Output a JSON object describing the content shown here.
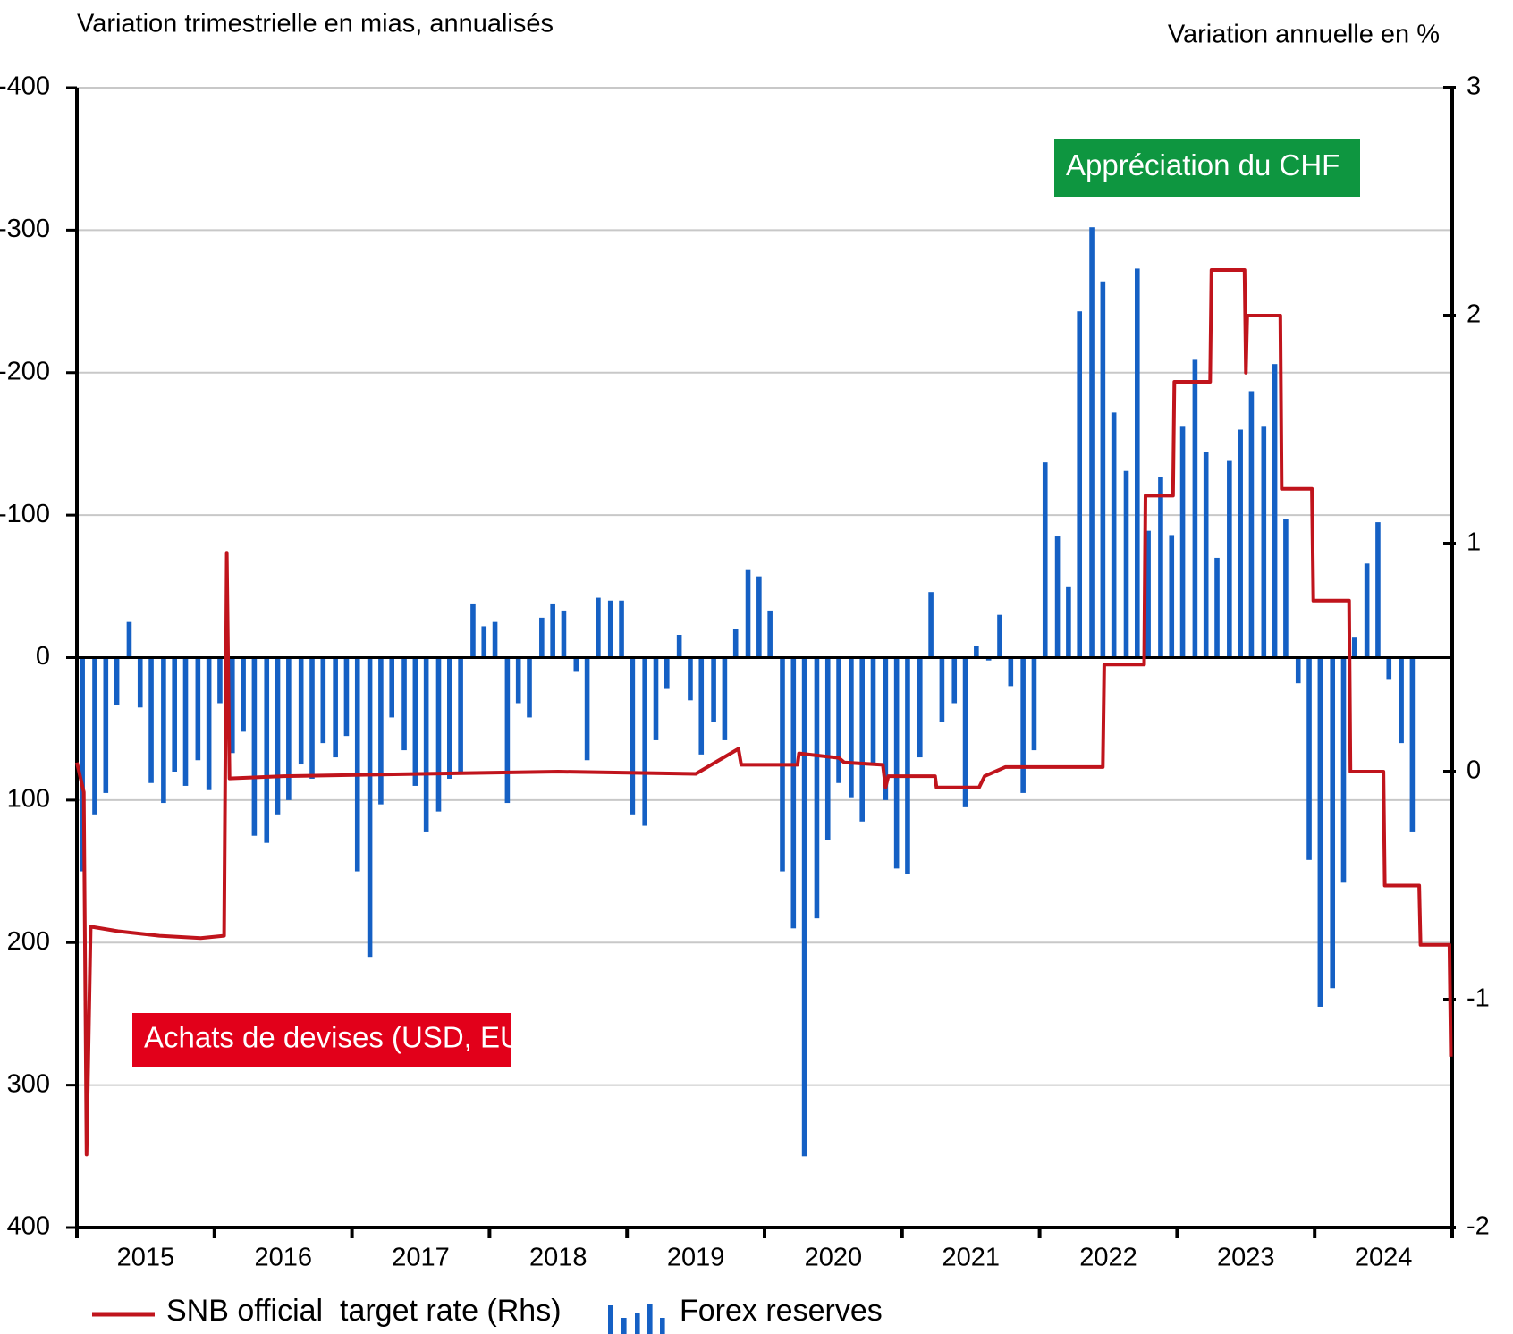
{
  "chart_data": {
    "type": "bar",
    "y_label": "Variation trimestrielle en mias, annualisés",
    "y2_label": "Variation annuelle en %",
    "ylim": [
      -400,
      400
    ],
    "inverted": true,
    "yticks": [
      -400,
      -300,
      -200,
      -100,
      0,
      100,
      200,
      300,
      400
    ],
    "y2lim": [
      -2,
      3
    ],
    "y2ticks": [
      -2,
      -1,
      0,
      1,
      2,
      3
    ],
    "xlim": [
      2015,
      2025
    ],
    "xticks": [
      2015,
      2016,
      2017,
      2018,
      2019,
      2020,
      2021,
      2022,
      2023,
      2024,
      2025
    ],
    "xlabels": [
      {
        "value": 2015.5,
        "label": "2015"
      },
      {
        "value": 2016.5,
        "label": "2016"
      },
      {
        "value": 2017.5,
        "label": "2017"
      },
      {
        "value": 2018.5,
        "label": "2018"
      },
      {
        "value": 2019.5,
        "label": "2019"
      },
      {
        "value": 2020.5,
        "label": "2020"
      },
      {
        "value": 2021.5,
        "label": "2021"
      },
      {
        "value": 2022.5,
        "label": "2022"
      },
      {
        "value": 2023.5,
        "label": "2023"
      },
      {
        "value": 2024.5,
        "label": "2024"
      }
    ],
    "grid": true,
    "annotations": [
      {
        "text": "Appréciation du CHF",
        "color": "#0e9640"
      },
      {
        "text": "Achats de devises (USD, EUR)",
        "color": "#e2001a"
      }
    ],
    "series": [
      {
        "name": "Forex reserves",
        "type": "bar",
        "color": "#1560c4",
        "x": [
          2015.04,
          2015.13,
          2015.21,
          2015.29,
          2015.38,
          2015.46,
          2015.54,
          2015.63,
          2015.71,
          2015.79,
          2015.88,
          2015.96,
          2016.04,
          2016.13,
          2016.21,
          2016.29,
          2016.38,
          2016.46,
          2016.54,
          2016.63,
          2016.71,
          2016.79,
          2016.88,
          2016.96,
          2017.04,
          2017.13,
          2017.21,
          2017.29,
          2017.38,
          2017.46,
          2017.54,
          2017.63,
          2017.71,
          2017.79,
          2017.88,
          2017.96,
          2018.04,
          2018.13,
          2018.21,
          2018.29,
          2018.38,
          2018.46,
          2018.54,
          2018.63,
          2018.71,
          2018.79,
          2018.88,
          2018.96,
          2019.04,
          2019.13,
          2019.21,
          2019.29,
          2019.38,
          2019.46,
          2019.54,
          2019.63,
          2019.71,
          2019.79,
          2019.88,
          2019.96,
          2020.04,
          2020.13,
          2020.21,
          2020.29,
          2020.38,
          2020.46,
          2020.54,
          2020.63,
          2020.71,
          2020.79,
          2020.88,
          2020.96,
          2021.04,
          2021.13,
          2021.21,
          2021.29,
          2021.38,
          2021.46,
          2021.54,
          2021.63,
          2021.71,
          2021.79,
          2021.88,
          2021.96,
          2022.04,
          2022.13,
          2022.21,
          2022.29,
          2022.38,
          2022.46,
          2022.54,
          2022.63,
          2022.71,
          2022.79,
          2022.88,
          2022.96,
          2023.04,
          2023.13,
          2023.21,
          2023.29,
          2023.38,
          2023.46,
          2023.54,
          2023.63,
          2023.71,
          2023.79,
          2023.88,
          2023.96,
          2024.04,
          2024.13,
          2024.21,
          2024.29,
          2024.38,
          2024.46,
          2024.54,
          2024.63,
          2024.71,
          2024.79
        ],
        "values": [
          150,
          110,
          95,
          33,
          -25,
          35,
          88,
          102,
          80,
          90,
          72,
          93,
          32,
          67,
          52,
          125,
          130,
          110,
          100,
          75,
          85,
          60,
          70,
          55,
          150,
          210,
          103,
          42,
          65,
          90,
          122,
          108,
          85,
          80,
          -38,
          -22,
          -25,
          102,
          32,
          42,
          -28,
          -38,
          -33,
          10,
          72,
          -42,
          -40,
          -40,
          110,
          118,
          58,
          22,
          -16,
          30,
          68,
          45,
          58,
          -20,
          -62,
          -57,
          -33,
          150,
          190,
          350,
          183,
          128,
          88,
          98,
          115,
          75,
          100,
          148,
          152,
          70,
          -46,
          45,
          32,
          105,
          -8,
          2,
          -30,
          20,
          95,
          65,
          -137,
          -85,
          -50,
          -243,
          -302,
          -264,
          -172,
          -131,
          -273,
          -89,
          -127,
          -86,
          -162,
          -209,
          -144,
          -70,
          -138,
          -160,
          -187,
          -162,
          -206,
          -97,
          18,
          142,
          245,
          232,
          158,
          -14,
          -66,
          -95,
          15,
          60,
          122,
          0
        ]
      },
      {
        "name": "SNB official  target rate (Rhs)",
        "type": "line",
        "axis": "y2",
        "color": "#c0141c",
        "x": [
          2015.0,
          2015.05,
          2015.07,
          2015.1,
          2015.3,
          2015.6,
          2015.9,
          2016.07,
          2016.09,
          2016.11,
          2016.5,
          2017.5,
          2018.5,
          2019.5,
          2019.81,
          2019.83,
          2020.24,
          2020.25,
          2020.54,
          2020.58,
          2020.86,
          2020.88,
          2020.9,
          2021.24,
          2021.25,
          2021.56,
          2021.6,
          2021.75,
          2022.46,
          2022.47,
          2022.76,
          2022.77,
          2022.97,
          2022.98,
          2023.24,
          2023.25,
          2023.49,
          2023.5,
          2023.51,
          2023.75,
          2023.76,
          2023.98,
          2023.99,
          2024.25,
          2024.26,
          2024.5,
          2024.51,
          2024.76,
          2024.77,
          2024.98,
          2024.99
        ],
        "values": [
          0.04,
          -0.09,
          -1.68,
          -0.68,
          -0.7,
          -0.72,
          -0.73,
          -0.72,
          0.96,
          -0.03,
          -0.02,
          -0.01,
          0.0,
          -0.01,
          0.1,
          0.03,
          0.03,
          0.08,
          0.06,
          0.04,
          0.03,
          -0.07,
          -0.02,
          -0.02,
          -0.07,
          -0.07,
          -0.02,
          0.02,
          0.02,
          0.47,
          0.47,
          1.21,
          1.21,
          1.71,
          1.71,
          2.2,
          2.2,
          1.75,
          2.0,
          2.0,
          1.24,
          1.24,
          0.75,
          0.75,
          0.0,
          0.0,
          -0.5,
          -0.5,
          -0.76,
          -0.76,
          -1.25
        ]
      }
    ]
  }
}
